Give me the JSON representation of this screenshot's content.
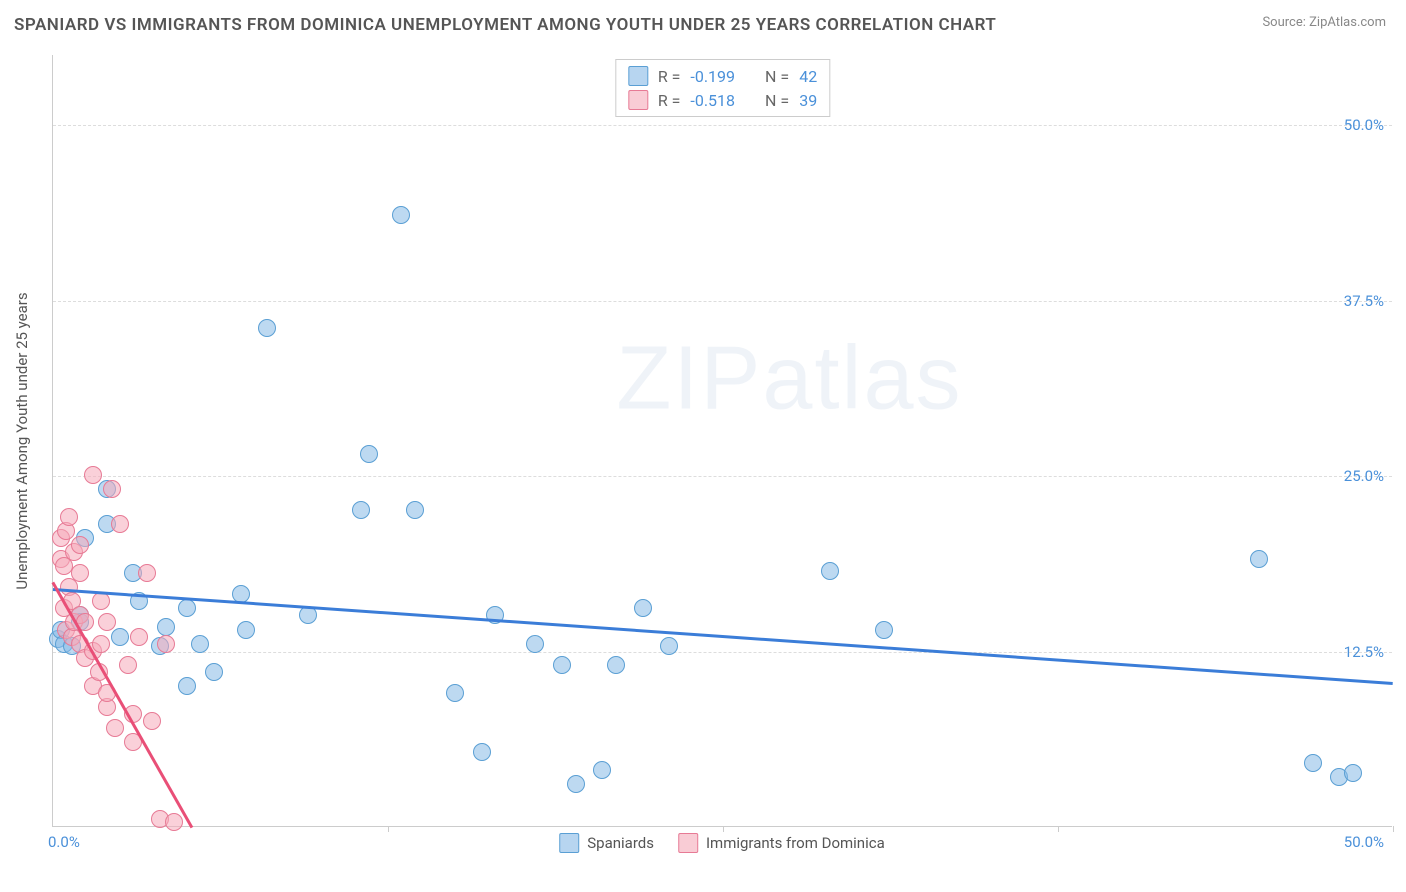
{
  "title": "SPANIARD VS IMMIGRANTS FROM DOMINICA UNEMPLOYMENT AMONG YOUTH UNDER 25 YEARS CORRELATION CHART",
  "source_label": "Source:",
  "source_name": "ZipAtlas.com",
  "y_axis_label": "Unemployment Among Youth under 25 years",
  "watermark": "ZIPatlas",
  "chart": {
    "type": "scatter",
    "xlim": [
      0,
      50
    ],
    "ylim": [
      0,
      55
    ],
    "y_ticks": [
      12.5,
      25.0,
      37.5,
      50.0
    ],
    "y_tick_labels": [
      "12.5%",
      "25.0%",
      "37.5%",
      "50.0%"
    ],
    "x_ticks": [
      0,
      12.5,
      25,
      37.5,
      50
    ],
    "x_origin_label": "0.0%",
    "x_max_label": "50.0%",
    "background_color": "#ffffff",
    "grid_color": "#dddddd",
    "marker_radius": 9,
    "series": [
      {
        "name": "Spaniards",
        "color_fill": "rgba(135,185,230,0.55)",
        "color_stroke": "#5a9fd4",
        "trend_color": "#3b7dd8",
        "R": "-0.199",
        "N": "42",
        "trend": {
          "x1": 0,
          "y1": 17.0,
          "x2": 50,
          "y2": 10.3
        },
        "points": [
          [
            0.2,
            13.3
          ],
          [
            0.3,
            14.0
          ],
          [
            0.4,
            13.0
          ],
          [
            0.7,
            12.8
          ],
          [
            1.0,
            14.5
          ],
          [
            1.0,
            15.0
          ],
          [
            1.2,
            20.5
          ],
          [
            2.0,
            24.0
          ],
          [
            2.0,
            21.5
          ],
          [
            2.5,
            13.5
          ],
          [
            3.0,
            18.0
          ],
          [
            3.2,
            16.0
          ],
          [
            4.0,
            12.8
          ],
          [
            4.2,
            14.2
          ],
          [
            5.0,
            15.5
          ],
          [
            5.0,
            10.0
          ],
          [
            5.5,
            13.0
          ],
          [
            6.0,
            11.0
          ],
          [
            7.0,
            16.5
          ],
          [
            7.2,
            14.0
          ],
          [
            8.0,
            35.5
          ],
          [
            9.5,
            15.0
          ],
          [
            11.5,
            22.5
          ],
          [
            11.8,
            26.5
          ],
          [
            13.0,
            43.5
          ],
          [
            13.5,
            22.5
          ],
          [
            15.0,
            9.5
          ],
          [
            16.0,
            5.3
          ],
          [
            16.5,
            15.0
          ],
          [
            18.0,
            13.0
          ],
          [
            19.0,
            11.5
          ],
          [
            19.5,
            3.0
          ],
          [
            20.5,
            4.0
          ],
          [
            21.0,
            11.5
          ],
          [
            22.0,
            15.5
          ],
          [
            23.0,
            12.8
          ],
          [
            29.0,
            18.2
          ],
          [
            31.0,
            14.0
          ],
          [
            45.0,
            19.0
          ],
          [
            47.0,
            4.5
          ],
          [
            48.0,
            3.5
          ],
          [
            48.5,
            3.8
          ]
        ]
      },
      {
        "name": "Immigrants from Dominica",
        "color_fill": "rgba(245,170,185,0.55)",
        "color_stroke": "#e77a95",
        "trend_color": "#e94f77",
        "R": "-0.518",
        "N": "39",
        "trend": {
          "x1": 0,
          "y1": 17.5,
          "x2": 5.2,
          "y2": 0
        },
        "points": [
          [
            0.3,
            19.0
          ],
          [
            0.3,
            20.5
          ],
          [
            0.4,
            15.5
          ],
          [
            0.4,
            18.5
          ],
          [
            0.5,
            14.0
          ],
          [
            0.5,
            21.0
          ],
          [
            0.6,
            17.0
          ],
          [
            0.6,
            22.0
          ],
          [
            0.7,
            13.5
          ],
          [
            0.7,
            16.0
          ],
          [
            0.8,
            14.5
          ],
          [
            0.8,
            19.5
          ],
          [
            1.0,
            13.0
          ],
          [
            1.0,
            15.0
          ],
          [
            1.0,
            18.0
          ],
          [
            1.0,
            20.0
          ],
          [
            1.2,
            12.0
          ],
          [
            1.2,
            14.5
          ],
          [
            1.5,
            10.0
          ],
          [
            1.5,
            12.5
          ],
          [
            1.5,
            25.0
          ],
          [
            1.7,
            11.0
          ],
          [
            1.8,
            13.0
          ],
          [
            1.8,
            16.0
          ],
          [
            2.0,
            8.5
          ],
          [
            2.0,
            9.5
          ],
          [
            2.0,
            14.5
          ],
          [
            2.2,
            24.0
          ],
          [
            2.3,
            7.0
          ],
          [
            2.5,
            21.5
          ],
          [
            2.8,
            11.5
          ],
          [
            3.0,
            6.0
          ],
          [
            3.0,
            8.0
          ],
          [
            3.2,
            13.5
          ],
          [
            3.5,
            18.0
          ],
          [
            3.7,
            7.5
          ],
          [
            4.0,
            0.5
          ],
          [
            4.2,
            13.0
          ],
          [
            4.5,
            0.3
          ]
        ]
      }
    ]
  },
  "legend": {
    "series1": "Spaniards",
    "series2": "Immigrants from Dominica"
  },
  "stats_box": {
    "r_label": "R =",
    "n_label": "N ="
  }
}
